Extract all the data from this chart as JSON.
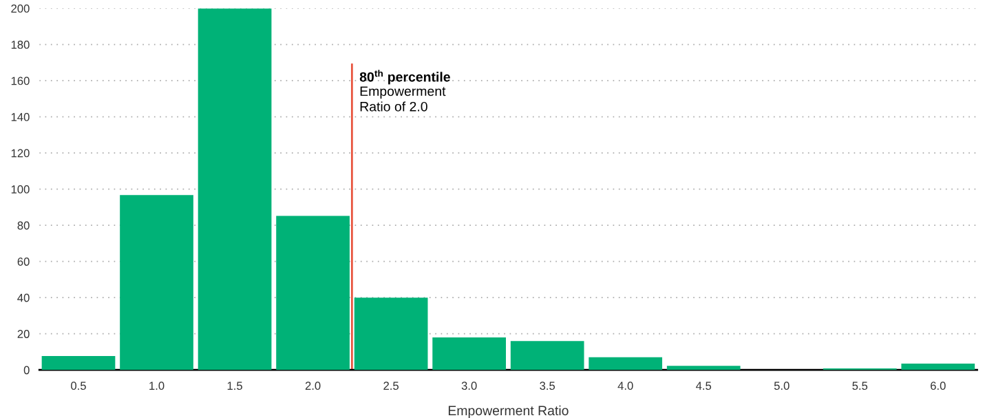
{
  "chart_data": {
    "type": "histogram",
    "xlabel": "Empowerment Ratio",
    "bins": [
      0.25,
      0.75,
      1.25,
      1.75,
      2.25,
      2.75,
      3.25,
      3.75,
      4.25,
      4.75,
      5.25,
      5.75,
      6.25
    ],
    "values": [
      7.7,
      96.7,
      200,
      85.2,
      40,
      18,
      16,
      7,
      2.3,
      0,
      0.8,
      3.5
    ],
    "color": "#00b277",
    "xlim": [
      0.25,
      6.25
    ],
    "xticks": [
      {
        "value": 0.5,
        "label": "0.5"
      },
      {
        "value": 1,
        "label": "1.0"
      },
      {
        "value": 1.5,
        "label": "1.5"
      },
      {
        "value": 2,
        "label": "2.0"
      },
      {
        "value": 2.5,
        "label": "2.5"
      },
      {
        "value": 3,
        "label": "3.0"
      },
      {
        "value": 3.5,
        "label": "3.5"
      },
      {
        "value": 4,
        "label": "4.0"
      },
      {
        "value": 4.5,
        "label": "4.5"
      },
      {
        "value": 5,
        "label": "5.0"
      },
      {
        "value": 5.5,
        "label": "5.5"
      },
      {
        "value": 6,
        "label": "6.0"
      }
    ],
    "ylim": [
      0,
      200
    ],
    "yticks": [
      0,
      20,
      40,
      60,
      80,
      100,
      120,
      140,
      160,
      180,
      200
    ],
    "grid": "y",
    "ref_lines": [
      {
        "axis": "x",
        "value": 2.25,
        "label": "80$^{th}$ percentile",
        "color": "#e8553f"
      }
    ],
    "annotations": [
      "Empowerment\nRatio of 2.0"
    ]
  }
}
